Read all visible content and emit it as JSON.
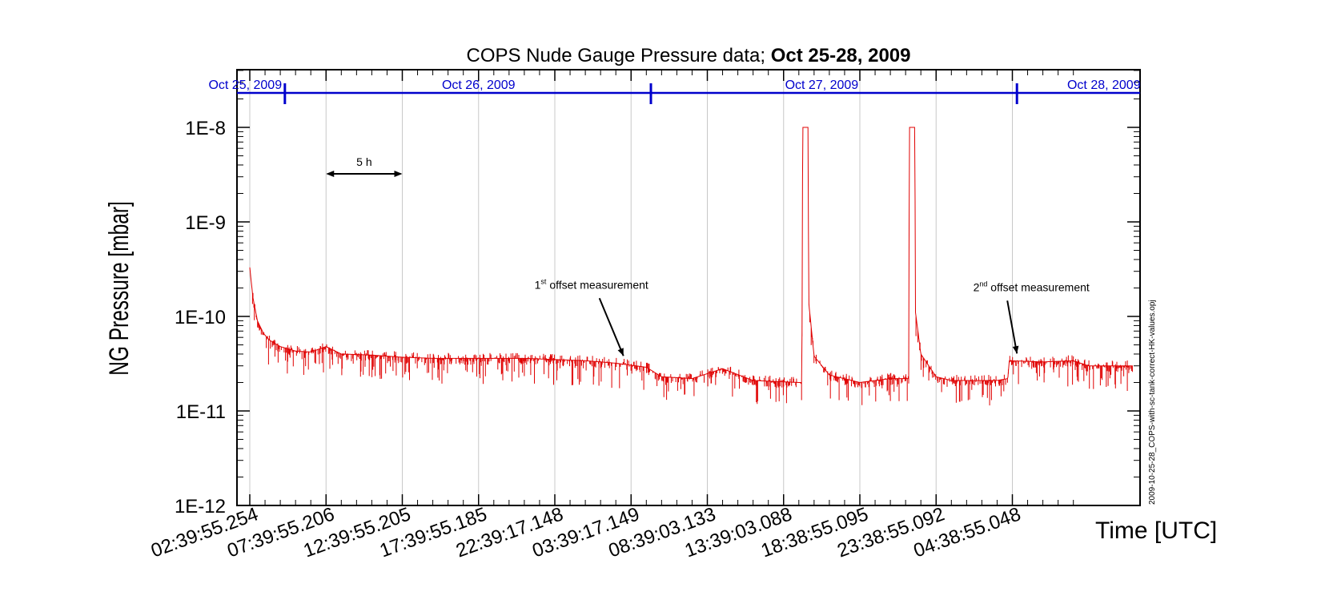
{
  "chart_data": {
    "type": "line",
    "title": "COPS Nude Gauge Pressure data; ",
    "title_bold": "Oct 25-28, 2009",
    "ylabel": "NG Pressure [mbar]",
    "xlabel": "Time [UTC]",
    "yscale": "log",
    "ylim": [
      1e-12,
      3e-08
    ],
    "xlim_hours": [
      -0.3,
      58.6
    ],
    "y_ticks": [
      "1E-12",
      "1E-11",
      "1E-10",
      "1E-9",
      "1E-8"
    ],
    "x_ticks": [
      {
        "label": "02:39:55.254",
        "hour": 0
      },
      {
        "label": "07:39:55.206",
        "hour": 5
      },
      {
        "label": "12:39:55.205",
        "hour": 10
      },
      {
        "label": "17:39:55.185",
        "hour": 15
      },
      {
        "label": "22:39:17.148",
        "hour": 20
      },
      {
        "label": "03:39:17.149",
        "hour": 25
      },
      {
        "label": "08:39:03.133",
        "hour": 30
      },
      {
        "label": "13:39:03.088",
        "hour": 35
      },
      {
        "label": "18:38:55.095",
        "hour": 40
      },
      {
        "label": "23:38:55.092",
        "hour": 45
      },
      {
        "label": "04:38:55.048",
        "hour": 50
      }
    ],
    "date_bar": {
      "color": "#0000cc",
      "labels": [
        {
          "text": "Oct 25, 2009",
          "hour": -0.3
        },
        {
          "text": "Oct 26, 2009",
          "hour": 15
        },
        {
          "text": "Oct 27, 2009",
          "hour": 37.5
        },
        {
          "text": "Oct 28, 2009",
          "hour": 56
        }
      ],
      "day_boundaries_hours": [
        2.3,
        26.3,
        50.3
      ]
    },
    "scale_indicator": {
      "label": "5 h",
      "from_hour": 5,
      "to_hour": 10
    },
    "annotations": [
      {
        "text": "offset measurement",
        "ordinal": "1",
        "sup": "st",
        "hour": 24.5,
        "value": 3.4e-11
      },
      {
        "text": "offset measurement",
        "ordinal": "2",
        "sup": "nd",
        "hour": 50.3,
        "value": 3.6e-11
      }
    ],
    "side_note": "2009-10-25-28_COPS-with-sc-tank-correct-HK-values.opj",
    "series": [
      {
        "color": "#e00000",
        "points": [
          [
            0,
            3.3e-10
          ],
          [
            0.2,
            1.6e-10
          ],
          [
            0.5,
            9e-11
          ],
          [
            0.9,
            6.6e-11
          ],
          [
            1.3,
            5.6e-11
          ],
          [
            2,
            4.8e-11
          ],
          [
            3,
            4.3e-11
          ],
          [
            4,
            4.2e-11
          ],
          [
            5,
            4.8e-11
          ],
          [
            6,
            4e-11
          ],
          [
            8,
            3.9e-11
          ],
          [
            10,
            3.7e-11
          ],
          [
            12,
            3.6e-11
          ],
          [
            15,
            3.6e-11
          ],
          [
            18,
            3.6e-11
          ],
          [
            20,
            3.5e-11
          ],
          [
            22,
            3.4e-11
          ],
          [
            24,
            3.2e-11
          ],
          [
            26,
            2.9e-11
          ],
          [
            27,
            2.3e-11
          ],
          [
            29,
            2.2e-11
          ],
          [
            31,
            2.8e-11
          ],
          [
            33,
            2.1e-11
          ],
          [
            36,
            2e-11
          ],
          [
            36.2,
            2e-11
          ],
          [
            36.25,
            1e-08
          ],
          [
            36.6,
            1e-08
          ],
          [
            36.65,
            1.4e-10
          ],
          [
            37,
            3.8e-11
          ],
          [
            38,
            2.4e-11
          ],
          [
            40,
            2e-11
          ],
          [
            42,
            2.2e-11
          ],
          [
            43.2,
            2.2e-11
          ],
          [
            43.25,
            1e-08
          ],
          [
            43.6,
            1e-08
          ],
          [
            43.65,
            1.1e-10
          ],
          [
            44,
            4e-11
          ],
          [
            45,
            2.3e-11
          ],
          [
            46,
            2.1e-11
          ],
          [
            48,
            2.1e-11
          ],
          [
            49,
            2.1e-11
          ],
          [
            49.7,
            2.2e-11
          ],
          [
            49.8,
            3.4e-11
          ],
          [
            52,
            3.3e-11
          ],
          [
            54,
            3.4e-11
          ],
          [
            55,
            3e-11
          ],
          [
            57,
            3e-11
          ],
          [
            57.9,
            3e-11
          ]
        ]
      }
    ]
  }
}
